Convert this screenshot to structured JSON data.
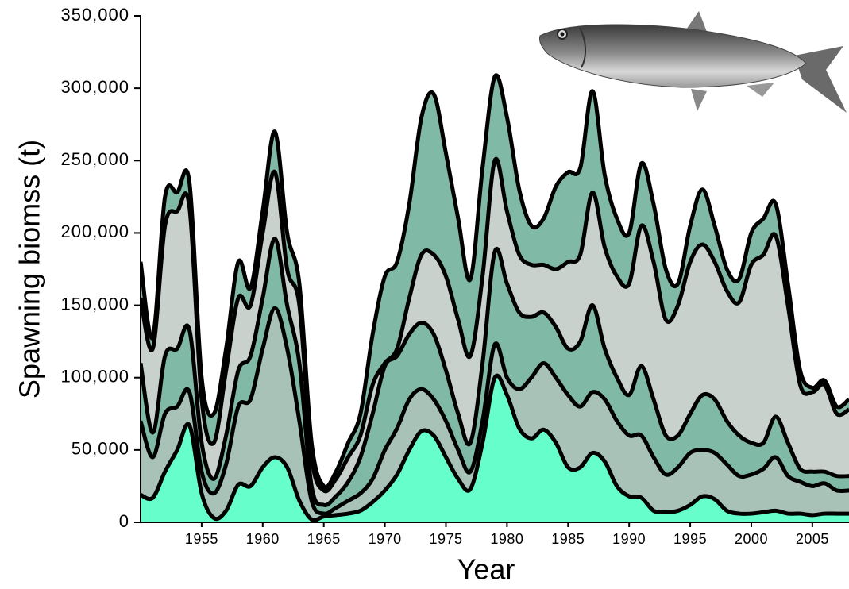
{
  "chart_data": {
    "type": "stacked_area",
    "y_label": "Spawning biomss (t)",
    "x_label": "Year",
    "x": [
      1950,
      1951,
      1952,
      1953,
      1954,
      1955,
      1956,
      1957,
      1958,
      1959,
      1960,
      1961,
      1962,
      1963,
      1964,
      1965,
      1966,
      1967,
      1968,
      1969,
      1970,
      1971,
      1972,
      1973,
      1974,
      1975,
      1976,
      1977,
      1978,
      1979,
      1980,
      1981,
      1982,
      1983,
      1984,
      1985,
      1986,
      1987,
      1988,
      1989,
      1990,
      1991,
      1992,
      1993,
      1994,
      1995,
      1996,
      1997,
      1998,
      1999,
      2000,
      2001,
      2002,
      2003,
      2004,
      2005,
      2006,
      2007,
      2008
    ],
    "series": [
      {
        "color": "#66ffcc",
        "values": [
          19000,
          17000,
          35000,
          50000,
          67000,
          20000,
          3000,
          8000,
          26000,
          25000,
          38000,
          45000,
          38000,
          15000,
          2000,
          4000,
          5000,
          6000,
          8000,
          14000,
          22000,
          33000,
          50000,
          63000,
          60000,
          45000,
          30000,
          23000,
          55000,
          100000,
          88000,
          65000,
          58000,
          64000,
          55000,
          38000,
          38000,
          48000,
          42000,
          25000,
          18000,
          17000,
          8000,
          7000,
          8000,
          12000,
          18000,
          16000,
          8000,
          6000,
          6000,
          7000,
          8000,
          6000,
          6000,
          5000,
          6000,
          6000,
          6000
        ]
      },
      {
        "color": "#a9c2b8",
        "values": [
          51000,
          28000,
          40000,
          30000,
          23000,
          15000,
          17000,
          32000,
          54000,
          60000,
          82000,
          103000,
          82000,
          55000,
          13000,
          2000,
          5000,
          9000,
          12000,
          16000,
          28000,
          32000,
          35000,
          29000,
          25000,
          25000,
          20000,
          12000,
          15000,
          23000,
          12000,
          27000,
          42000,
          46000,
          45000,
          50000,
          42000,
          42000,
          43000,
          45000,
          42000,
          43000,
          37000,
          26000,
          30000,
          36000,
          32000,
          32000,
          32000,
          26000,
          27000,
          30000,
          37000,
          26000,
          22000,
          20000,
          21000,
          16000,
          16000
        ]
      },
      {
        "color": "#80b9a6",
        "values": [
          40000,
          17000,
          40000,
          40000,
          43000,
          20000,
          10000,
          20000,
          25000,
          30000,
          35000,
          48000,
          30000,
          40000,
          10000,
          6000,
          8000,
          13000,
          25000,
          45000,
          58000,
          50000,
          45000,
          46000,
          45000,
          35000,
          25000,
          20000,
          40000,
          64000,
          65000,
          53000,
          42000,
          35000,
          35000,
          32000,
          45000,
          60000,
          35000,
          30000,
          28000,
          48000,
          40000,
          27000,
          22000,
          27000,
          38000,
          37000,
          30000,
          28000,
          22000,
          18000,
          28000,
          23000,
          9000,
          10000,
          8000,
          10000,
          10000
        ]
      },
      {
        "color": "#c8d1cc",
        "values": [
          45000,
          58000,
          90000,
          95000,
          85000,
          30000,
          25000,
          45000,
          50000,
          35000,
          45000,
          46000,
          25000,
          40000,
          20000,
          10000,
          12000,
          17000,
          15000,
          20000,
          2000,
          5000,
          25000,
          47000,
          55000,
          65000,
          65000,
          60000,
          60000,
          63000,
          50000,
          40000,
          36000,
          33000,
          40000,
          60000,
          60000,
          78000,
          70000,
          70000,
          77000,
          97000,
          95000,
          80000,
          90000,
          105000,
          104000,
          95000,
          90000,
          92000,
          123000,
          130000,
          125000,
          95000,
          58000,
          55000,
          60000,
          43000,
          46000
        ]
      },
      {
        "color": "#80b9a6",
        "values": [
          25000,
          8000,
          20000,
          13000,
          17000,
          15000,
          20000,
          15000,
          25000,
          12000,
          15000,
          28000,
          25000,
          15000,
          10000,
          3000,
          5000,
          10000,
          15000,
          35000,
          60000,
          60000,
          65000,
          95000,
          111000,
          85000,
          70000,
          53000,
          75000,
          58000,
          65000,
          45000,
          27000,
          32000,
          57000,
          62000,
          60000,
          70000,
          50000,
          40000,
          35000,
          43000,
          40000,
          35000,
          15000,
          25000,
          38000,
          25000,
          15000,
          16000,
          22000,
          25000,
          22000,
          15000,
          10000,
          3000,
          3000,
          5000,
          7000
        ]
      }
    ],
    "xlim": [
      1950,
      2008
    ],
    "xticks": [
      1955,
      1960,
      1965,
      1970,
      1975,
      1980,
      1985,
      1990,
      1995,
      2000,
      2005
    ],
    "ylim": [
      0,
      350000
    ],
    "yticks": [
      0,
      {
        "value": 50000,
        "label": "50,000"
      },
      {
        "value": 100000,
        "label": "100,000"
      },
      {
        "value": 150000,
        "label": "150,000"
      },
      {
        "value": 200000,
        "label": "200,000"
      },
      {
        "value": 250000,
        "label": "250,000"
      },
      {
        "value": 300000,
        "label": "300,000"
      },
      {
        "value": 350000,
        "label": "350,000"
      }
    ]
  }
}
